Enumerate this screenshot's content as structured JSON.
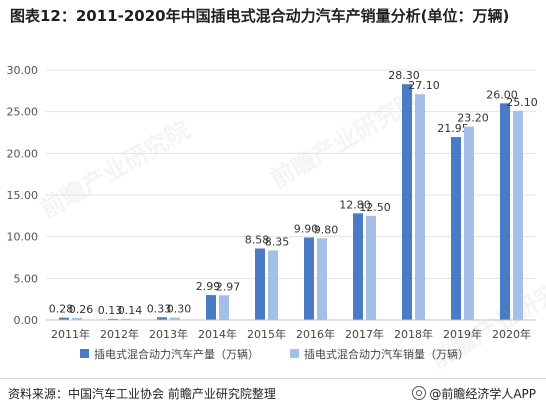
{
  "title": "图表12：2011-2020年中国插电式混合动力汽车产销量分析(单位：万辆)",
  "source": "资料来源：中国汽车工业协会 前瞻产业研究院整理",
  "brand": "@前瞻经济学人APP",
  "watermark": "前瞻产业研究院",
  "colors": {
    "series1": "#4a7cc6",
    "series2": "#a6bfe9"
  },
  "chart_data": {
    "type": "bar",
    "categories": [
      "2011年",
      "2012年",
      "2013年",
      "2014年",
      "2015年",
      "2016年",
      "2017年",
      "2018年",
      "2019年",
      "2020年"
    ],
    "series": [
      {
        "name": "插电式混合动力汽车产量（万辆）",
        "values": [
          0.28,
          0.13,
          0.33,
          2.99,
          8.58,
          9.9,
          12.8,
          28.3,
          21.95,
          26.0
        ],
        "labels": [
          "0.28",
          "0.13",
          "0.33",
          "2.99",
          "8.58",
          "9.90",
          "12.80",
          "28.30",
          "21.95",
          "26.00"
        ]
      },
      {
        "name": "插电式混合动力汽车销量（万辆）",
        "values": [
          0.26,
          0.14,
          0.3,
          2.97,
          8.35,
          9.8,
          12.5,
          27.1,
          23.2,
          25.1
        ],
        "labels": [
          "0.26",
          "0.14",
          "0.30",
          "2.97",
          "8.35",
          "9.80",
          "12.50",
          "27.10",
          "23.20",
          "25.10"
        ]
      }
    ],
    "yticks": [
      "0.00",
      "5.00",
      "10.00",
      "15.00",
      "20.00",
      "25.00",
      "30.00"
    ],
    "ylim": [
      0,
      30
    ],
    "grid": true,
    "legend": "bottom"
  }
}
